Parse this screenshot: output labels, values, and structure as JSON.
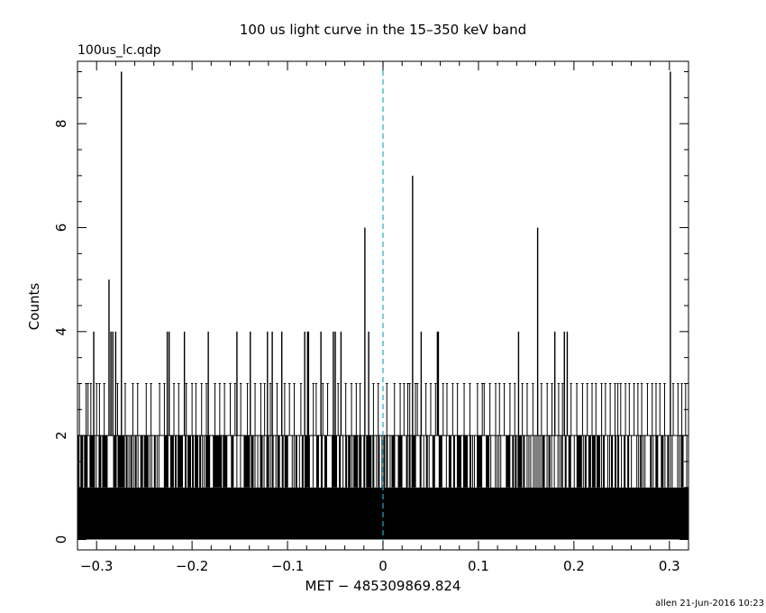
{
  "chart_data": {
    "type": "bar",
    "title": "100 us light curve in the 15–350 keV band",
    "file_label": "100us_lc.qdp",
    "xlabel": "MET − 485309869.824",
    "ylabel": "Counts",
    "footer": "allen 21-Jun-2016 10:23",
    "xlim": [
      -0.32,
      0.32
    ],
    "ylim": [
      -0.2,
      9.2
    ],
    "x_ticks": [
      -0.3,
      -0.2,
      -0.1,
      0,
      0.1,
      0.2,
      0.3
    ],
    "x_tick_labels": [
      "−0.3",
      "−0.2",
      "−0.1",
      "0",
      "0.1",
      "0.2",
      "0.3"
    ],
    "y_ticks": [
      0,
      2,
      4,
      6,
      8
    ],
    "y_tick_labels": [
      "0",
      "2",
      "4",
      "6",
      "8"
    ],
    "bin_width": 0.0001,
    "baseline_level": 1,
    "marker_x": 0,
    "marker_color": "#2aa7c9",
    "line_color": "#000000",
    "grid": false,
    "spikes": [
      {
        "x": -0.303,
        "y": 4
      },
      {
        "x": -0.287,
        "y": 5
      },
      {
        "x": -0.285,
        "y": 4
      },
      {
        "x": -0.283,
        "y": 4
      },
      {
        "x": -0.28,
        "y": 4
      },
      {
        "x": -0.274,
        "y": 9
      },
      {
        "x": -0.226,
        "y": 4
      },
      {
        "x": -0.224,
        "y": 4
      },
      {
        "x": -0.208,
        "y": 4
      },
      {
        "x": -0.183,
        "y": 4
      },
      {
        "x": -0.153,
        "y": 4
      },
      {
        "x": -0.139,
        "y": 4
      },
      {
        "x": -0.121,
        "y": 4
      },
      {
        "x": -0.116,
        "y": 4
      },
      {
        "x": -0.106,
        "y": 4
      },
      {
        "x": -0.082,
        "y": 4
      },
      {
        "x": -0.079,
        "y": 4
      },
      {
        "x": -0.078,
        "y": 4
      },
      {
        "x": -0.065,
        "y": 4
      },
      {
        "x": -0.052,
        "y": 4
      },
      {
        "x": -0.05,
        "y": 4
      },
      {
        "x": -0.044,
        "y": 4
      },
      {
        "x": -0.019,
        "y": 6
      },
      {
        "x": -0.015,
        "y": 4
      },
      {
        "x": 0.031,
        "y": 7
      },
      {
        "x": 0.04,
        "y": 4
      },
      {
        "x": 0.057,
        "y": 4
      },
      {
        "x": 0.058,
        "y": 4
      },
      {
        "x": 0.142,
        "y": 4
      },
      {
        "x": 0.162,
        "y": 6
      },
      {
        "x": 0.18,
        "y": 4
      },
      {
        "x": 0.19,
        "y": 4
      },
      {
        "x": 0.193,
        "y": 4
      },
      {
        "x": 0.301,
        "y": 9
      }
    ],
    "threes": [
      -0.318,
      -0.311,
      -0.309,
      -0.306,
      -0.3,
      -0.297,
      -0.292,
      -0.278,
      -0.27,
      -0.262,
      -0.257,
      -0.248,
      -0.243,
      -0.234,
      -0.229,
      -0.219,
      -0.214,
      -0.206,
      -0.2,
      -0.196,
      -0.19,
      -0.185,
      -0.176,
      -0.171,
      -0.166,
      -0.16,
      -0.155,
      -0.149,
      -0.142,
      -0.134,
      -0.128,
      -0.124,
      -0.118,
      -0.111,
      -0.103,
      -0.098,
      -0.093,
      -0.086,
      -0.073,
      -0.07,
      -0.063,
      -0.058,
      -0.047,
      -0.039,
      -0.033,
      -0.028,
      -0.024,
      -0.01,
      -0.005,
      0.004,
      0.012,
      0.018,
      0.022,
      0.026,
      0.028,
      0.034,
      0.036,
      0.045,
      0.05,
      0.055,
      0.063,
      0.067,
      0.073,
      0.078,
      0.085,
      0.091,
      0.099,
      0.104,
      0.106,
      0.112,
      0.118,
      0.122,
      0.127,
      0.133,
      0.138,
      0.146,
      0.151,
      0.157,
      0.166,
      0.172,
      0.177,
      0.184,
      0.188,
      0.197,
      0.203,
      0.209,
      0.214,
      0.219,
      0.223,
      0.229,
      0.233,
      0.238,
      0.243,
      0.246,
      0.249,
      0.254,
      0.258,
      0.263,
      0.267,
      0.271,
      0.277,
      0.282,
      0.286,
      0.29,
      0.295,
      0.304,
      0.309,
      0.313,
      0.317
    ]
  }
}
